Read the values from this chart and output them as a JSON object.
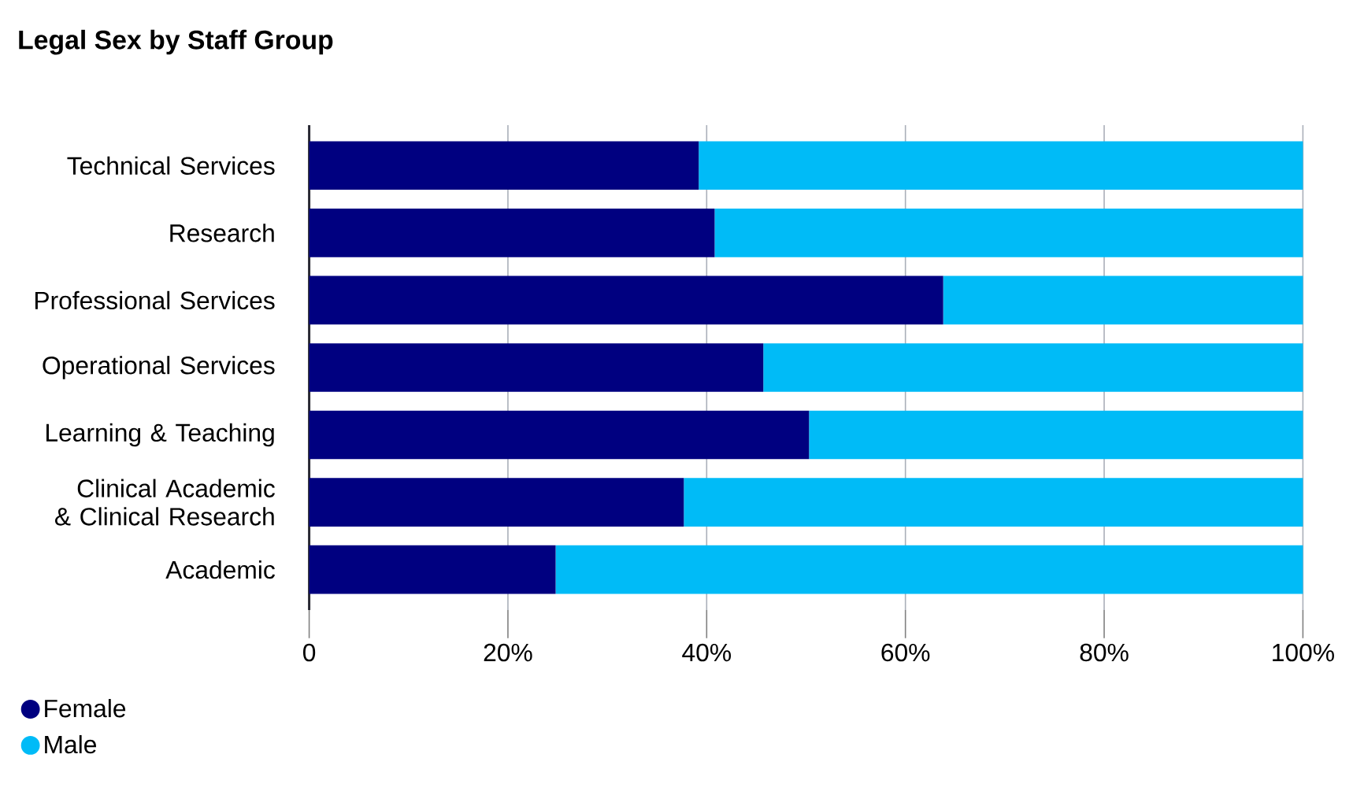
{
  "chart_data": {
    "type": "bar",
    "orientation": "horizontal",
    "stacked": true,
    "title": "Legal Sex by Staff Group",
    "categories": [
      "Technical Services",
      "Research",
      "Professional Services",
      "Operational Services",
      "Learning & Teaching",
      "Clinical Academic & Clinical Research",
      "Academic"
    ],
    "series": [
      {
        "name": "Female",
        "color": "#000080",
        "values": [
          39.2,
          40.8,
          63.8,
          45.7,
          50.3,
          37.7,
          24.8
        ]
      },
      {
        "name": "Male",
        "color": "#00bbf7",
        "values": [
          60.8,
          59.2,
          36.2,
          54.3,
          49.7,
          62.3,
          75.2
        ]
      }
    ],
    "xlim": [
      0,
      100
    ],
    "xticks": [
      0,
      {
        "value": 20,
        "label": "20%"
      },
      {
        "value": 40,
        "label": "40%"
      },
      {
        "value": 60,
        "label": "60%"
      },
      {
        "value": 80,
        "label": "80%"
      },
      {
        "value": 100,
        "label": "100%"
      }
    ],
    "grid": "x",
    "legend": "bottom left"
  }
}
